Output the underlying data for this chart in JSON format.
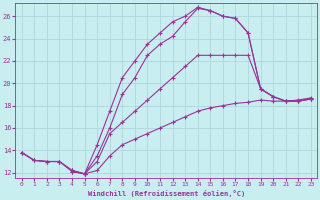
{
  "xlabel": "Windchill (Refroidissement éolien,°C)",
  "background_color": "#c8eef0",
  "grid_color": "#b0d8dc",
  "line_color": "#993399",
  "xlim": [
    -0.5,
    23.5
  ],
  "ylim": [
    11.5,
    27.2
  ],
  "xticks": [
    0,
    1,
    2,
    3,
    4,
    5,
    6,
    7,
    8,
    9,
    10,
    11,
    12,
    13,
    14,
    15,
    16,
    17,
    18,
    19,
    20,
    21,
    22,
    23
  ],
  "yticks": [
    12,
    14,
    16,
    18,
    20,
    22,
    24,
    26
  ],
  "line1_x": [
    0,
    1,
    2,
    3,
    4,
    5,
    6,
    7,
    8,
    9,
    10,
    11,
    12,
    13,
    14,
    15,
    16,
    17,
    18,
    19,
    20,
    21,
    22,
    23
  ],
  "line1_y": [
    13.8,
    13.1,
    13.0,
    13.0,
    12.2,
    11.9,
    12.2,
    13.5,
    14.5,
    15.0,
    15.5,
    16.0,
    16.5,
    17.0,
    17.5,
    17.8,
    18.0,
    18.2,
    18.3,
    18.5,
    18.4,
    18.4,
    18.5,
    18.7
  ],
  "line2_x": [
    0,
    1,
    2,
    3,
    4,
    5,
    6,
    7,
    8,
    9,
    10,
    11,
    12,
    13,
    14,
    15,
    16,
    17,
    18,
    19,
    20,
    21,
    22,
    23
  ],
  "line2_y": [
    13.8,
    13.1,
    13.0,
    13.0,
    12.2,
    11.9,
    13.0,
    15.5,
    16.5,
    17.5,
    18.5,
    19.5,
    20.5,
    21.5,
    22.5,
    22.5,
    22.5,
    22.5,
    22.5,
    19.5,
    18.8,
    18.4,
    18.4,
    18.6
  ],
  "line3_x": [
    0,
    1,
    2,
    3,
    4,
    5,
    6,
    7,
    8,
    9,
    10,
    11,
    12,
    13,
    14,
    15,
    16,
    17,
    18,
    19,
    20,
    21,
    22,
    23
  ],
  "line3_y": [
    13.8,
    13.1,
    13.0,
    13.0,
    12.1,
    11.9,
    13.5,
    16.0,
    19.0,
    20.5,
    22.5,
    23.5,
    24.2,
    25.5,
    26.7,
    26.5,
    26.0,
    25.8,
    24.5,
    19.5,
    18.8,
    18.4,
    18.4,
    18.6
  ],
  "line4_x": [
    4,
    5,
    6,
    7,
    8,
    9,
    10,
    11,
    12,
    13,
    14,
    15,
    16,
    17,
    18,
    19,
    20,
    21,
    22,
    23
  ],
  "line4_y": [
    12.1,
    11.9,
    14.5,
    17.5,
    20.5,
    22.0,
    23.5,
    24.5,
    25.5,
    26.0,
    26.8,
    26.5,
    26.0,
    25.8,
    24.5,
    19.5,
    18.8,
    18.4,
    18.4,
    18.6
  ]
}
